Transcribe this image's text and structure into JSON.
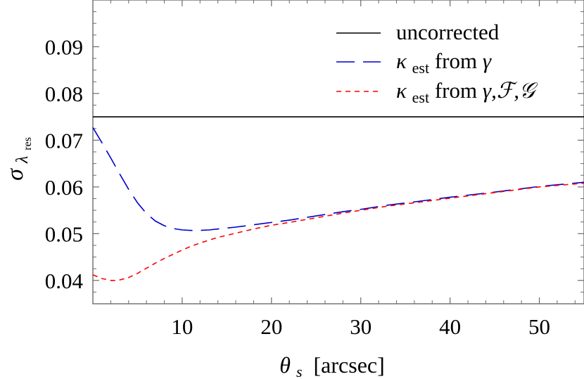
{
  "chart_data": {
    "type": "line",
    "title": "",
    "xlabel": {
      "symbol": "θ",
      "subscript": "s",
      "unit": "[arcsec]"
    },
    "ylabel": {
      "symbol": "σ",
      "subscript": "λ",
      "subsubscript": "res"
    },
    "xlim": [
      0,
      55
    ],
    "ylim": [
      0.035,
      0.1
    ],
    "x_ticks": [
      10,
      20,
      30,
      40,
      50
    ],
    "y_ticks": [
      0.04,
      0.05,
      0.06,
      0.07,
      0.08,
      0.09
    ],
    "x_tick_labels": [
      "10",
      "20",
      "30",
      "40",
      "50"
    ],
    "y_tick_labels": [
      "0.04",
      "0.05",
      "0.06",
      "0.07",
      "0.08",
      "0.09"
    ],
    "grid": false,
    "legend_position": "top-right",
    "series": [
      {
        "name": "uncorrected",
        "legend": {
          "main": "uncorrected"
        },
        "color": "#000000",
        "dash": "solid",
        "x": [
          0,
          55
        ],
        "y": [
          0.075,
          0.075
        ]
      },
      {
        "name": "κest from γ",
        "legend": {
          "kappa": "κ",
          "sub": "est",
          "rest": " from ",
          "vars": "γ"
        },
        "color": "#0000cc",
        "dash": "long-dash",
        "x": [
          0,
          1,
          2,
          3,
          4,
          5,
          6,
          7,
          8,
          9,
          10,
          11,
          12,
          13,
          14,
          15,
          16,
          18,
          20,
          22,
          25,
          28,
          30,
          33,
          36,
          40,
          45,
          50,
          55
        ],
        "y": [
          0.0727,
          0.0695,
          0.0662,
          0.0628,
          0.0595,
          0.0566,
          0.0543,
          0.0527,
          0.0517,
          0.0511,
          0.0508,
          0.0507,
          0.0507,
          0.0508,
          0.051,
          0.0512,
          0.0514,
          0.0519,
          0.0524,
          0.0529,
          0.0538,
          0.0547,
          0.0552,
          0.0561,
          0.0568,
          0.0578,
          0.0589,
          0.0601,
          0.061
        ]
      },
      {
        "name": "κest from γ,F,G",
        "legend": {
          "kappa": "κ",
          "sub": "est",
          "rest": " from ",
          "vars": "γ,ℱ,𝒢"
        },
        "color": "#ff0000",
        "dash": "short-dash",
        "x": [
          0,
          1,
          2,
          2.5,
          3,
          4,
          5,
          6,
          7,
          8,
          9,
          10,
          11,
          12,
          14,
          16,
          18,
          20,
          22,
          25,
          28,
          30,
          33,
          36,
          40,
          45,
          50,
          55
        ],
        "y": [
          0.0412,
          0.0404,
          0.04,
          0.04,
          0.0401,
          0.0406,
          0.0415,
          0.0426,
          0.0437,
          0.0447,
          0.0456,
          0.0465,
          0.0473,
          0.048,
          0.0492,
          0.0501,
          0.051,
          0.0518,
          0.0524,
          0.0534,
          0.0544,
          0.055,
          0.0559,
          0.0566,
          0.0576,
          0.0588,
          0.06,
          0.0608
        ]
      }
    ]
  }
}
